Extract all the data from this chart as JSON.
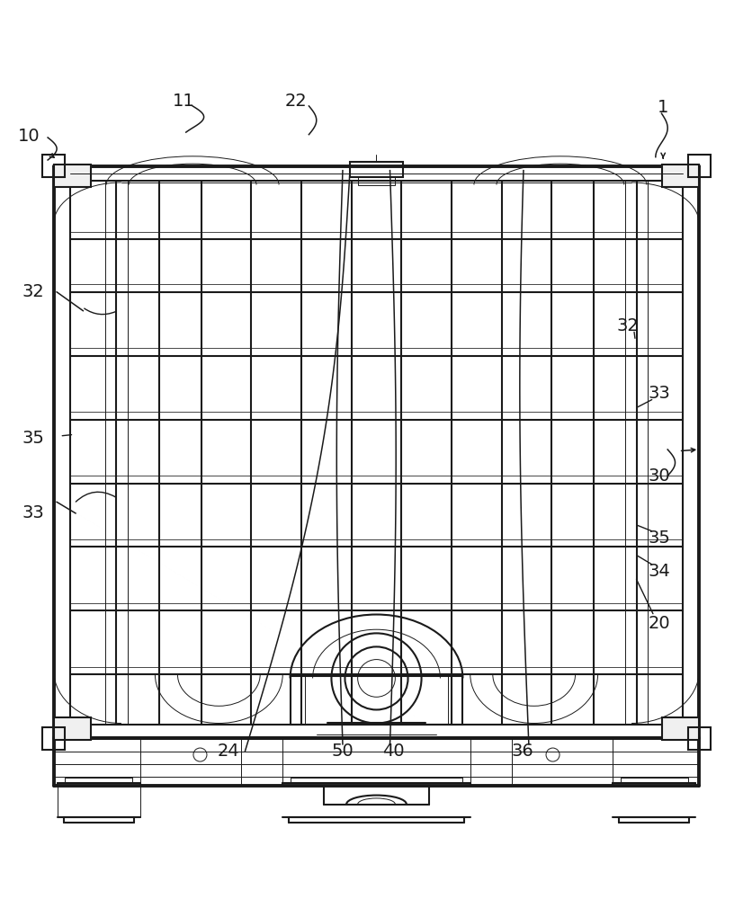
{
  "bg_color": "#ffffff",
  "line_color": "#1a1a1a",
  "line_width": 1.5,
  "thick_line": 2.8,
  "thin_line": 0.7,
  "fontsize": 14
}
